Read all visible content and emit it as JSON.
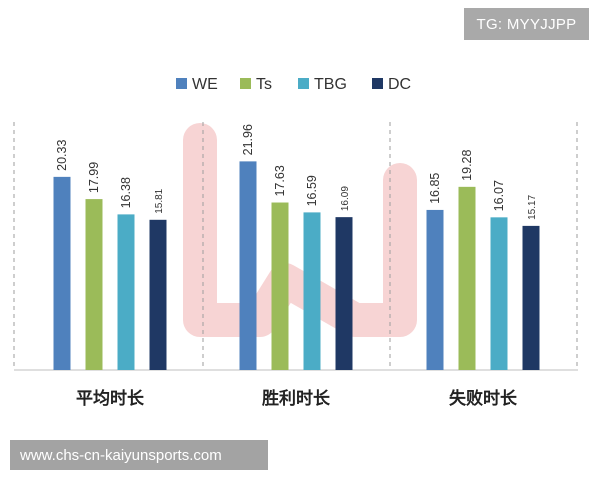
{
  "watermark_tag": "TG: MYYJJPP",
  "site_url": "www.chs-cn-kaiyunsports.com",
  "chart_data": {
    "type": "bar",
    "title": "",
    "xlabel": "",
    "ylabel": "",
    "ylim": [
      0,
      25
    ],
    "grid": false,
    "legend_position": "top",
    "categories": [
      "平均时长",
      "胜利时长",
      "失败时长"
    ],
    "series": [
      {
        "name": "WE",
        "color": "#4f81bd",
        "values": [
          20.33,
          21.96,
          16.85
        ]
      },
      {
        "name": "Ts",
        "color": "#9bbb59",
        "values": [
          17.99,
          17.63,
          19.28
        ]
      },
      {
        "name": "TBG",
        "color": "#4bacc6",
        "values": [
          16.38,
          16.59,
          16.07
        ]
      },
      {
        "name": "DC",
        "color": "#1f3864",
        "values": [
          15.81,
          16.09,
          15.17
        ]
      }
    ]
  }
}
